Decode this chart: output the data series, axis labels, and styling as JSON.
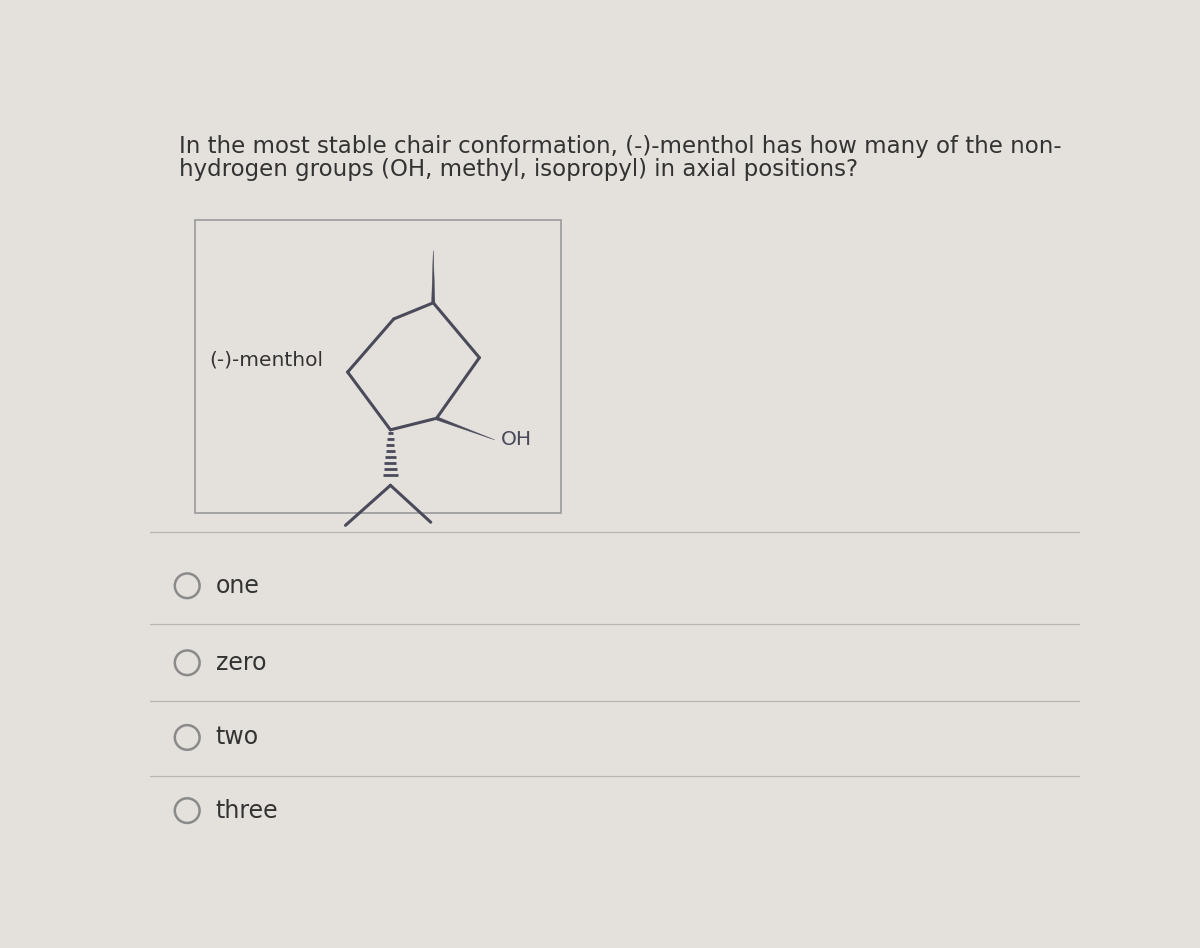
{
  "question_line1": "In the most stable chair conformation, (-)-menthol has how many of the non-",
  "question_line2": "hydrogen groups (OH, methyl, isopropyl) in axial positions?",
  "label": "(-)-menthol",
  "oh_label": "OH",
  "choices": [
    "one",
    "zero",
    "two",
    "three"
  ],
  "bg_color": "#e4e1dc",
  "box_bg": "#e4e1dc",
  "box_border": "#9a9a9a",
  "text_color": "#333333",
  "structure_color": "#4a4a5a",
  "question_fontsize": 16.5,
  "choice_fontsize": 17,
  "label_fontsize": 14.5
}
